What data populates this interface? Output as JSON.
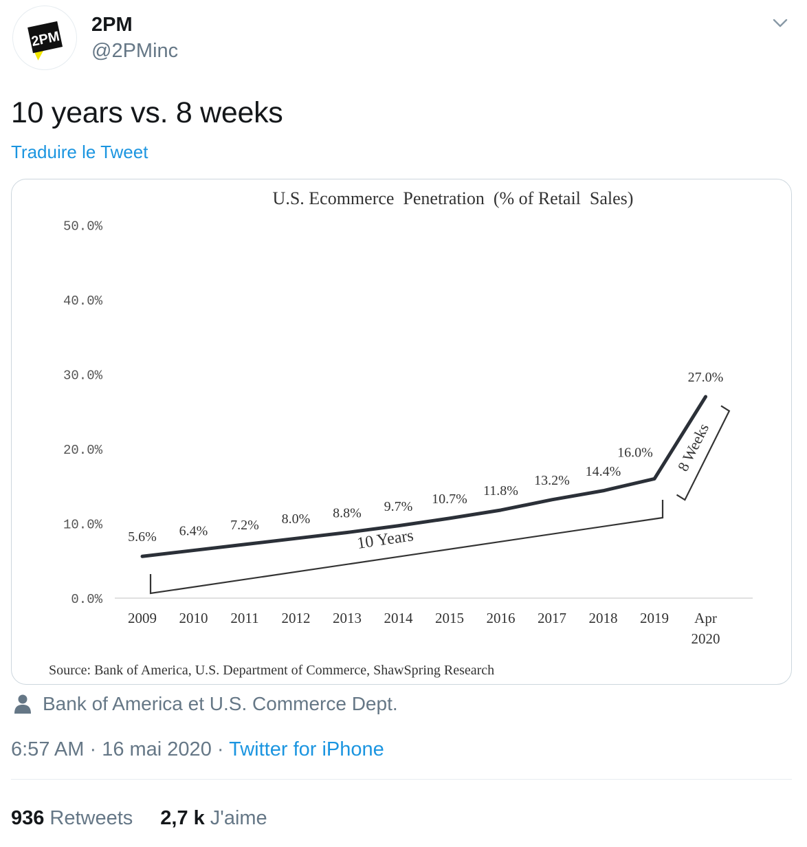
{
  "author": {
    "name": "2PM",
    "handle": "@2PMinc",
    "logo_text": "2PM",
    "logo_accent_color": "#f2e600"
  },
  "tweet": {
    "text": "10 years vs. 8 weeks",
    "translate_label": "Traduire le Tweet"
  },
  "media": {
    "credit": "Bank of America et U.S. Commerce Dept.",
    "credit_icon": "person-icon"
  },
  "meta": {
    "time": "6:57 AM",
    "separator": "·",
    "date": "16 mai 2020",
    "source": "Twitter for iPhone"
  },
  "stats": {
    "retweets_count": "936",
    "retweets_label": "Retweets",
    "likes_count": "2,7 k",
    "likes_label": "J'aime"
  },
  "colors": {
    "link": "#1b95e0",
    "secondary_text": "#657786",
    "primary_text": "#14171a",
    "chart_line": "#2b3038"
  },
  "chart_data": {
    "type": "line",
    "title": "U.S. Ecommerce  Penetration  (% of Retail  Sales)",
    "categories": [
      "2009",
      "2010",
      "2011",
      "2012",
      "2013",
      "2014",
      "2015",
      "2016",
      "2017",
      "2018",
      "2019",
      "Apr 2020"
    ],
    "category_lines": [
      [
        "2009"
      ],
      [
        "2010"
      ],
      [
        "2011"
      ],
      [
        "2012"
      ],
      [
        "2013"
      ],
      [
        "2014"
      ],
      [
        "2015"
      ],
      [
        "2016"
      ],
      [
        "2017"
      ],
      [
        "2018"
      ],
      [
        "2019"
      ],
      [
        "Apr",
        "2020"
      ]
    ],
    "series": [
      {
        "values": [
          5.6,
          6.4,
          7.2,
          8.0,
          8.8,
          9.7,
          10.7,
          11.8,
          13.2,
          14.4,
          16.0,
          27.0
        ]
      }
    ],
    "data_labels": [
      "5.6%",
      "6.4%",
      "7.2%",
      "8.0%",
      "8.8%",
      "9.7%",
      "10.7%",
      "11.8%",
      "13.2%",
      "14.4%",
      "16.0%",
      "27.0%"
    ],
    "y_ticks": [
      0,
      10,
      20,
      30,
      40,
      50
    ],
    "y_tick_labels": [
      "0.0%",
      "10.0%",
      "20.0%",
      "30.0%",
      "40.0%",
      "50.0%"
    ],
    "ylim": [
      0,
      50
    ],
    "grid": false,
    "annotations": [
      {
        "text": "10 Years",
        "from": "2009",
        "to": "2019"
      },
      {
        "text": "8 Weeks",
        "from": "2019",
        "to": "Apr 2020"
      }
    ],
    "source": "Source: Bank of America, U.S. Department of Commerce, ShawSpring Research"
  }
}
